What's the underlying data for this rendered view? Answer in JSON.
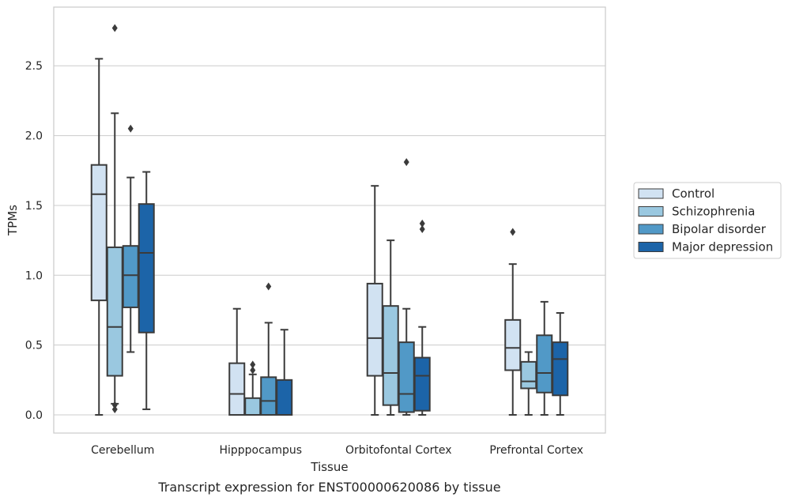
{
  "chart_data": {
    "type": "box",
    "title": "",
    "caption": "Transcript expression for ENST00000620086 by tissue",
    "xlabel": "Tissue",
    "ylabel": "TPMs",
    "ylim": [
      -0.13,
      2.92
    ],
    "yticks": [
      0.0,
      0.5,
      1.0,
      1.5,
      2.0,
      2.5
    ],
    "ytick_labels": [
      "0.0",
      "0.5",
      "1.0",
      "1.5",
      "2.0",
      "2.5"
    ],
    "grid": "horizontal",
    "legend_position": "right",
    "categories": [
      "Cerebellum",
      "Hipppocampus",
      "Orbitofontal Cortex",
      "Prefrontal Cortex"
    ],
    "series": [
      {
        "name": "Control",
        "color": "#d1e2f2",
        "boxes": [
          {
            "whislo": 0.0,
            "q1": 0.82,
            "med": 1.58,
            "q3": 1.79,
            "whishi": 2.55,
            "fliers": []
          },
          {
            "whislo": 0.0,
            "q1": 0.0,
            "med": 0.15,
            "q3": 0.37,
            "whishi": 0.76,
            "fliers": []
          },
          {
            "whislo": 0.0,
            "q1": 0.28,
            "med": 0.55,
            "q3": 0.94,
            "whishi": 1.64,
            "fliers": []
          },
          {
            "whislo": 0.0,
            "q1": 0.32,
            "med": 0.48,
            "q3": 0.68,
            "whishi": 1.08,
            "fliers": [
              1.31
            ]
          }
        ]
      },
      {
        "name": "Schizophrenia",
        "color": "#9ac8e0",
        "boxes": [
          {
            "whislo": 0.08,
            "q1": 0.28,
            "med": 0.63,
            "q3": 1.2,
            "whishi": 2.16,
            "fliers": [
              2.77,
              0.07,
              0.04
            ]
          },
          {
            "whislo": 0.0,
            "q1": 0.0,
            "med": 0.0,
            "q3": 0.12,
            "whishi": 0.29,
            "fliers": [
              0.36,
              0.32
            ]
          },
          {
            "whislo": 0.0,
            "q1": 0.07,
            "med": 0.3,
            "q3": 0.78,
            "whishi": 1.25,
            "fliers": []
          },
          {
            "whislo": 0.0,
            "q1": 0.19,
            "med": 0.24,
            "q3": 0.38,
            "whishi": 0.45,
            "fliers": []
          }
        ]
      },
      {
        "name": "Bipolar disorder",
        "color": "#5199c7",
        "boxes": [
          {
            "whislo": 0.45,
            "q1": 0.77,
            "med": 1.0,
            "q3": 1.21,
            "whishi": 1.7,
            "fliers": [
              2.05
            ]
          },
          {
            "whislo": 0.0,
            "q1": 0.0,
            "med": 0.1,
            "q3": 0.27,
            "whishi": 0.66,
            "fliers": [
              0.92
            ]
          },
          {
            "whislo": 0.0,
            "q1": 0.02,
            "med": 0.15,
            "q3": 0.52,
            "whishi": 0.76,
            "fliers": [
              1.81
            ]
          },
          {
            "whislo": 0.0,
            "q1": 0.16,
            "med": 0.3,
            "q3": 0.57,
            "whishi": 0.81,
            "fliers": []
          }
        ]
      },
      {
        "name": "Major depression",
        "color": "#1c64a8",
        "boxes": [
          {
            "whislo": 0.04,
            "q1": 0.59,
            "med": 1.16,
            "q3": 1.51,
            "whishi": 1.74,
            "fliers": []
          },
          {
            "whislo": 0.0,
            "q1": 0.0,
            "med": 0.0,
            "q3": 0.25,
            "whishi": 0.61,
            "fliers": []
          },
          {
            "whislo": 0.0,
            "q1": 0.03,
            "med": 0.28,
            "q3": 0.41,
            "whishi": 0.63,
            "fliers": [
              1.37,
              1.33
            ]
          },
          {
            "whislo": 0.0,
            "q1": 0.14,
            "med": 0.4,
            "q3": 0.52,
            "whishi": 0.73,
            "fliers": []
          }
        ]
      }
    ]
  }
}
